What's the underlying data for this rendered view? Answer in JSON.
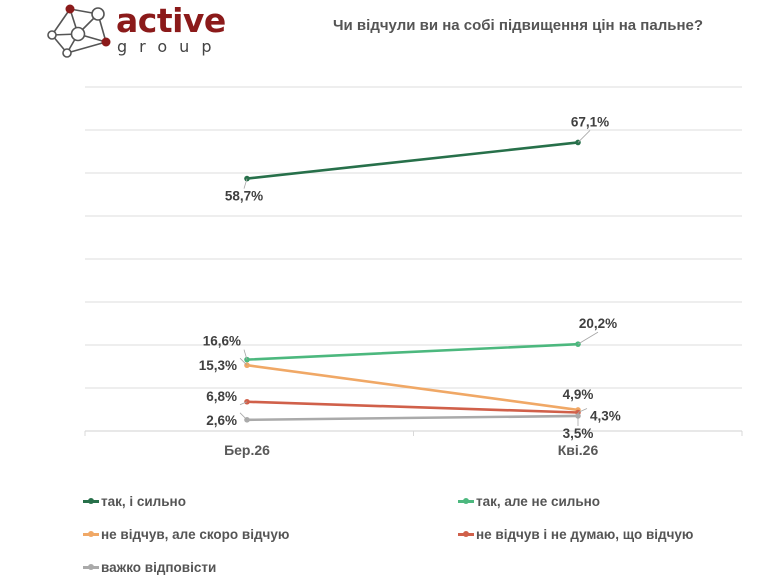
{
  "logo": {
    "name": "active",
    "sub": "group",
    "accent": "#8b1a1a"
  },
  "chart_data": {
    "type": "line",
    "title": "Чи відчули ви на собі підвищення цін на пальне?",
    "categories": [
      "Бер.26",
      "Кві.26"
    ],
    "ylim": [
      0,
      80
    ],
    "ytick_step": 10,
    "grid": true,
    "legend_position": "bottom",
    "series": [
      {
        "name": "так, і сильно",
        "color": "#27704a",
        "values": [
          58.7,
          67.1
        ],
        "labels": [
          "58,7%",
          "67,1%"
        ]
      },
      {
        "name": "так, але не сильно",
        "color": "#4cb87e",
        "values": [
          16.6,
          20.2
        ],
        "labels": [
          "16,6%",
          "20,2%"
        ]
      },
      {
        "name": "не відчув, але скоро відчую",
        "color": "#f0a866",
        "values": [
          15.3,
          4.9
        ],
        "labels": [
          "15,3%",
          "4,9%"
        ]
      },
      {
        "name": "не відчув і не думаю, що відчую",
        "color": "#d0604a",
        "values": [
          6.8,
          4.3
        ],
        "labels": [
          "6,8%",
          "4,3%"
        ]
      },
      {
        "name": "важко відповісти",
        "color": "#aaaaaa",
        "values": [
          2.6,
          3.5
        ],
        "labels": [
          "2,6%",
          "3,5%"
        ]
      }
    ]
  }
}
